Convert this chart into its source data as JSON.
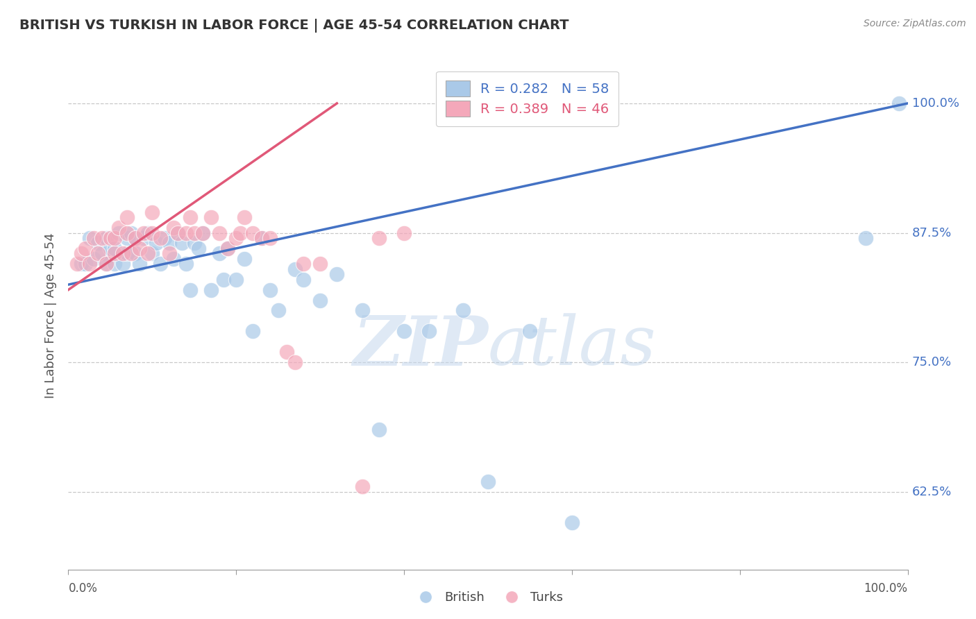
{
  "title": "BRITISH VS TURKISH IN LABOR FORCE | AGE 45-54 CORRELATION CHART",
  "source": "Source: ZipAtlas.com",
  "ylabel": "In Labor Force | Age 45-54",
  "ytick_labels": [
    "62.5%",
    "75.0%",
    "87.5%",
    "100.0%"
  ],
  "ytick_values": [
    62.5,
    75.0,
    87.5,
    100.0
  ],
  "xlim": [
    0.0,
    100.0
  ],
  "ylim": [
    55.0,
    104.0
  ],
  "legend_r_british": "R = 0.282",
  "legend_n_british": "N = 58",
  "legend_r_turks": "R = 0.389",
  "legend_n_turks": "N = 46",
  "british_color": "#aac9e8",
  "turks_color": "#f4a8ba",
  "british_line_color": "#4472c4",
  "turks_line_color": "#e05878",
  "watermark_zip": "ZIP",
  "watermark_atlas": "atlas",
  "british_x": [
    1.5,
    2.0,
    2.5,
    3.0,
    3.5,
    4.0,
    4.5,
    4.5,
    5.0,
    5.5,
    5.5,
    6.0,
    6.5,
    7.0,
    7.0,
    7.5,
    8.0,
    8.0,
    8.5,
    9.0,
    9.5,
    10.0,
    10.5,
    11.0,
    11.5,
    12.0,
    12.5,
    13.0,
    13.5,
    14.0,
    14.5,
    15.0,
    15.5,
    16.0,
    17.0,
    18.0,
    18.5,
    19.0,
    20.0,
    21.0,
    22.0,
    23.0,
    24.0,
    25.0,
    27.0,
    28.0,
    30.0,
    32.0,
    35.0,
    37.0,
    40.0,
    43.0,
    47.0,
    50.0,
    55.0,
    60.0,
    95.0,
    99.0
  ],
  "british_y": [
    84.5,
    84.5,
    87.0,
    85.0,
    86.5,
    85.5,
    87.0,
    84.5,
    86.0,
    84.5,
    86.0,
    87.5,
    84.5,
    87.0,
    85.5,
    87.5,
    85.5,
    87.0,
    84.5,
    87.0,
    87.5,
    85.5,
    86.5,
    84.5,
    87.0,
    86.5,
    85.0,
    87.5,
    86.5,
    84.5,
    82.0,
    86.5,
    86.0,
    87.5,
    82.0,
    85.5,
    83.0,
    86.0,
    83.0,
    85.0,
    78.0,
    87.0,
    82.0,
    80.0,
    84.0,
    83.0,
    81.0,
    83.5,
    80.0,
    68.5,
    78.0,
    78.0,
    80.0,
    63.5,
    78.0,
    59.5,
    87.0,
    100.0
  ],
  "turks_x": [
    1.0,
    1.5,
    2.0,
    2.5,
    3.0,
    3.5,
    4.0,
    4.5,
    5.0,
    5.5,
    5.5,
    6.0,
    6.5,
    7.0,
    7.0,
    7.5,
    8.0,
    8.5,
    9.0,
    9.5,
    10.0,
    10.0,
    11.0,
    12.0,
    12.5,
    13.0,
    14.0,
    14.5,
    15.0,
    16.0,
    17.0,
    18.0,
    19.0,
    20.0,
    20.5,
    21.0,
    22.0,
    23.0,
    24.0,
    26.0,
    27.0,
    28.0,
    30.0,
    35.0,
    37.0,
    40.0
  ],
  "turks_y": [
    84.5,
    85.5,
    86.0,
    84.5,
    87.0,
    85.5,
    87.0,
    84.5,
    87.0,
    85.5,
    87.0,
    88.0,
    85.5,
    87.5,
    89.0,
    85.5,
    87.0,
    86.0,
    87.5,
    85.5,
    87.5,
    89.5,
    87.0,
    85.5,
    88.0,
    87.5,
    87.5,
    89.0,
    87.5,
    87.5,
    89.0,
    87.5,
    86.0,
    87.0,
    87.5,
    89.0,
    87.5,
    87.0,
    87.0,
    76.0,
    75.0,
    84.5,
    84.5,
    63.0,
    87.0,
    87.5
  ],
  "british_line_x": [
    0.0,
    100.0
  ],
  "british_line_y": [
    82.5,
    100.0
  ],
  "turks_line_x": [
    0.0,
    32.0
  ],
  "turks_line_y": [
    82.0,
    100.0
  ]
}
